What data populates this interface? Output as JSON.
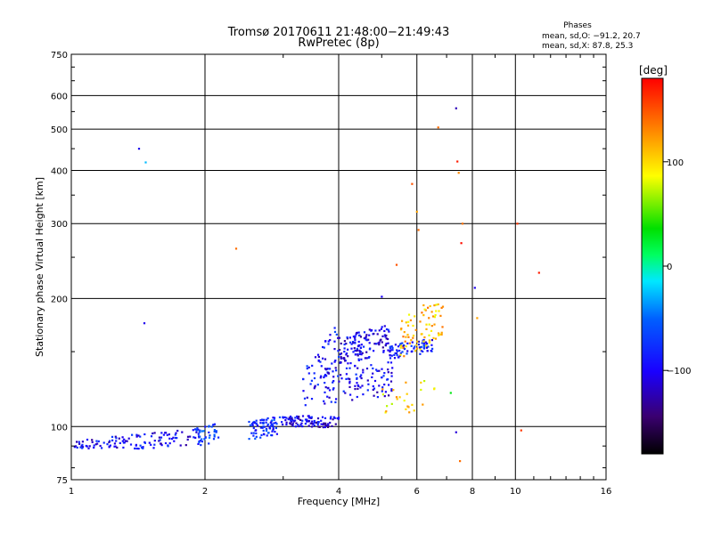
{
  "chart_data": {
    "type": "scatter",
    "title": "Tromsø 20170611 21:48:00−21:49:43",
    "subtitle": "RwPretec (8p)",
    "xlabel": "Frequency [MHz]",
    "ylabel": "Stationary phase Virtual Height [km]",
    "x_scale": "log2",
    "y_scale": "log",
    "xlim": [
      1,
      16
    ],
    "ylim": [
      75,
      750
    ],
    "x_ticks": [
      1,
      2,
      4,
      6,
      8,
      10,
      16
    ],
    "x_tick_labels": [
      "1",
      "2",
      "4",
      "6",
      "8",
      "10",
      "16"
    ],
    "y_ticks": [
      75,
      100,
      200,
      300,
      400,
      500,
      600,
      750
    ],
    "y_tick_labels": [
      "75",
      "100",
      "200",
      "300",
      "400",
      "500",
      "600",
      "750"
    ],
    "grid": true,
    "phase_stats": {
      "title": "Phases",
      "line_o": "mean, sd,O: −91.2, 20.7",
      "line_x": "mean, sd,X:  87.8, 25.3"
    },
    "colorbar": {
      "label": "[deg]",
      "range": [
        -180,
        180
      ],
      "ticks": [
        100,
        0,
        -100
      ],
      "tick_labels": [
        "100",
        "0",
        "−100"
      ]
    },
    "trace_segments": [
      {
        "f0": 1.0,
        "f1": 1.3,
        "h0": 91,
        "h1": 92,
        "spread": 3,
        "phase": -110,
        "n": 45
      },
      {
        "f0": 1.3,
        "f1": 1.55,
        "h0": 92,
        "h1": 93,
        "spread": 4,
        "phase": -105,
        "n": 35
      },
      {
        "f0": 1.55,
        "f1": 1.95,
        "h0": 93,
        "h1": 95,
        "spread": 4,
        "phase": -108,
        "n": 40
      },
      {
        "f0": 1.9,
        "f1": 2.15,
        "h0": 95,
        "h1": 97,
        "spread": 5,
        "phase": -80,
        "n": 40
      },
      {
        "f0": 2.5,
        "f1": 3.0,
        "h0": 98,
        "h1": 101,
        "spread": 5,
        "phase": -90,
        "n": 80
      },
      {
        "f0": 3.0,
        "f1": 3.5,
        "h0": 103,
        "h1": 103,
        "spread": 3,
        "phase": -115,
        "n": 60
      },
      {
        "f0": 3.5,
        "f1": 4.0,
        "h0": 102,
        "h1": 103,
        "spread": 3,
        "phase": -118,
        "n": 40
      },
      {
        "f0": 3.3,
        "f1": 4.0,
        "h0": 120,
        "h1": 160,
        "spread": 15,
        "phase": -100,
        "n": 55
      },
      {
        "f0": 3.7,
        "f1": 5.3,
        "h0": 125,
        "h1": 130,
        "spread": 12,
        "phase": -108,
        "n": 110
      },
      {
        "f0": 4.0,
        "f1": 5.2,
        "h0": 150,
        "h1": 162,
        "spread": 12,
        "phase": -110,
        "n": 130
      },
      {
        "f0": 5.2,
        "f1": 6.5,
        "h0": 150,
        "h1": 155,
        "spread": 6,
        "phase": -98,
        "n": 75
      },
      {
        "f0": 5.5,
        "f1": 6.9,
        "h0": 160,
        "h1": 185,
        "spread": 20,
        "phase": 110,
        "n": 75
      },
      {
        "f0": 5.0,
        "f1": 6.6,
        "h0": 115,
        "h1": 120,
        "spread": 10,
        "phase": 100,
        "n": 25
      }
    ],
    "isolated_points": [
      {
        "f": 1.42,
        "h": 450,
        "phase": -115
      },
      {
        "f": 1.47,
        "h": 418,
        "phase": -30
      },
      {
        "f": 1.46,
        "h": 175,
        "phase": -115
      },
      {
        "f": 2.35,
        "h": 262,
        "phase": 140
      },
      {
        "f": 5.0,
        "h": 202,
        "phase": -110
      },
      {
        "f": 5.4,
        "h": 240,
        "phase": 150
      },
      {
        "f": 5.85,
        "h": 372,
        "phase": 150
      },
      {
        "f": 6.0,
        "h": 320,
        "phase": 120
      },
      {
        "f": 6.05,
        "h": 290,
        "phase": 140
      },
      {
        "f": 6.7,
        "h": 505,
        "phase": 140
      },
      {
        "f": 7.35,
        "h": 560,
        "phase": -130
      },
      {
        "f": 7.4,
        "h": 420,
        "phase": 170
      },
      {
        "f": 7.45,
        "h": 395,
        "phase": 130
      },
      {
        "f": 7.6,
        "h": 300,
        "phase": 140
      },
      {
        "f": 7.55,
        "h": 270,
        "phase": 175
      },
      {
        "f": 8.1,
        "h": 212,
        "phase": -115
      },
      {
        "f": 8.2,
        "h": 180,
        "phase": 120
      },
      {
        "f": 10.1,
        "h": 300,
        "phase": 160
      },
      {
        "f": 11.3,
        "h": 230,
        "phase": 170
      },
      {
        "f": 7.35,
        "h": 97,
        "phase": -120
      },
      {
        "f": 7.5,
        "h": 83,
        "phase": 140
      },
      {
        "f": 10.3,
        "h": 98,
        "phase": 160
      },
      {
        "f": 7.15,
        "h": 120,
        "phase": 30
      }
    ]
  }
}
